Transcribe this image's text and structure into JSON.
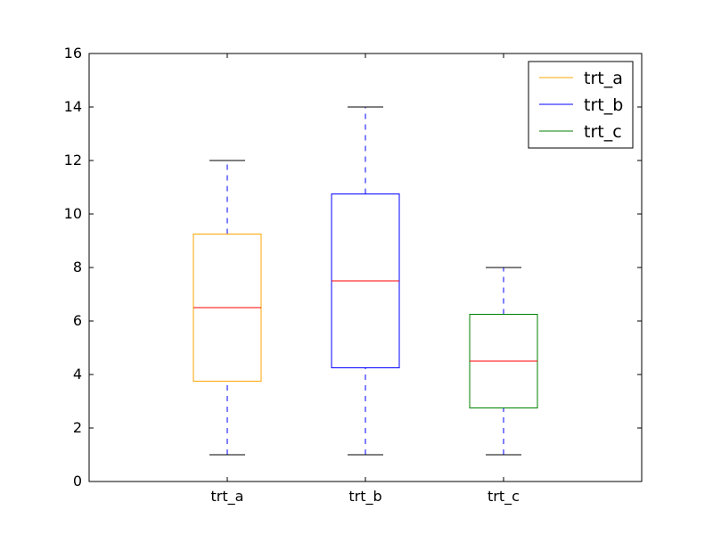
{
  "chart_data": {
    "type": "box",
    "categories": [
      "trt_a",
      "trt_b",
      "trt_c"
    ],
    "series": [
      {
        "name": "trt_a",
        "color": "#FFA500",
        "whisker_low": 1,
        "q1": 3.75,
        "median": 6.5,
        "q3": 9.25,
        "whisker_high": 12
      },
      {
        "name": "trt_b",
        "color": "#0000FF",
        "whisker_low": 1,
        "q1": 4.25,
        "median": 7.5,
        "q3": 10.75,
        "whisker_high": 14
      },
      {
        "name": "trt_c",
        "color": "#008000",
        "whisker_low": 1,
        "q1": 2.75,
        "median": 4.5,
        "q3": 6.25,
        "whisker_high": 8
      }
    ],
    "median_color": "#FF0000",
    "whisker_color": "#0000FF",
    "cap_color": "#000000",
    "ylim": [
      0,
      16
    ],
    "yticks": [
      "0",
      "2",
      "4",
      "6",
      "8",
      "10",
      "12",
      "14",
      "16"
    ],
    "xlim": [
      0,
      4
    ],
    "grid": false,
    "legend_position": "top-right",
    "title": "",
    "xlabel": "",
    "ylabel": ""
  }
}
